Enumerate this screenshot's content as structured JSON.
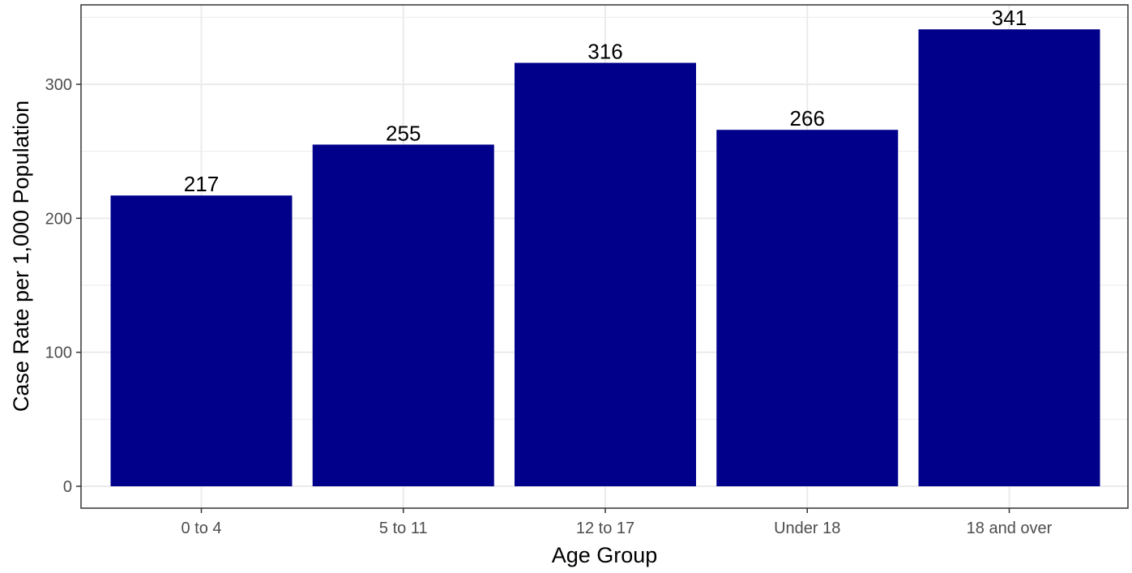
{
  "chart_data": {
    "type": "bar",
    "title": "",
    "xlabel": "Age Group",
    "ylabel": "Case Rate per 1,000 Population",
    "categories": [
      "0 to 4",
      "5 to 11",
      "12 to 17",
      "Under 18",
      "18 and over"
    ],
    "values": [
      217,
      255,
      316,
      266,
      341
    ],
    "data_labels": [
      "217",
      "255",
      "316",
      "266",
      "341"
    ],
    "ylim": [
      0,
      360
    ],
    "yticks": [
      0,
      100,
      200,
      300
    ],
    "ytick_labels": [
      "0",
      "100",
      "200",
      "300"
    ],
    "grid": true,
    "legend": "none",
    "colors": {
      "bar": "#00008B",
      "grid": "#ebebeb",
      "panel_border": "#333333",
      "axis_text": "#4d4d4d",
      "title_text": "#000000"
    }
  }
}
